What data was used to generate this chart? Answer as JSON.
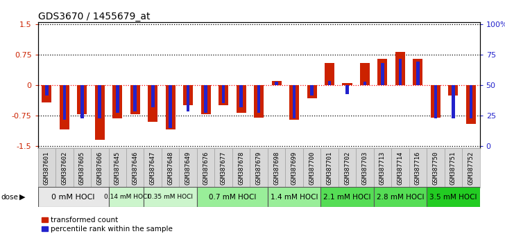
{
  "title": "GDS3670 / 1455679_at",
  "samples": [
    "GSM387601",
    "GSM387602",
    "GSM387605",
    "GSM387606",
    "GSM387645",
    "GSM387646",
    "GSM387647",
    "GSM387648",
    "GSM387649",
    "GSM387676",
    "GSM387677",
    "GSM387678",
    "GSM387679",
    "GSM387698",
    "GSM387699",
    "GSM387700",
    "GSM387701",
    "GSM387702",
    "GSM387703",
    "GSM387713",
    "GSM387714",
    "GSM387716",
    "GSM387750",
    "GSM387751",
    "GSM387752"
  ],
  "red_values": [
    -0.42,
    -1.08,
    -0.72,
    -1.35,
    -0.82,
    -0.71,
    -0.9,
    -1.08,
    -0.5,
    -0.72,
    -0.5,
    -0.68,
    -0.8,
    0.1,
    -0.85,
    -0.33,
    0.55,
    0.05,
    0.55,
    0.65,
    0.82,
    0.65,
    -0.8,
    -0.25,
    -0.95
  ],
  "blue_values": [
    -0.26,
    -0.85,
    -0.82,
    -0.82,
    -0.68,
    -0.65,
    -0.55,
    -1.05,
    -0.65,
    -0.68,
    -0.45,
    -0.55,
    -0.68,
    0.08,
    -0.82,
    -0.26,
    0.1,
    -0.22,
    0.08,
    0.55,
    0.65,
    0.58,
    -0.82,
    -0.82,
    -0.82
  ],
  "dose_groups": [
    {
      "label": "0 mM HOCl",
      "start": 0,
      "end": 4,
      "color": "#e8e8e8",
      "fontsize": 8
    },
    {
      "label": "0.14 mM HOCl",
      "start": 4,
      "end": 6,
      "color": "#ccf5cc",
      "fontsize": 6.5
    },
    {
      "label": "0.35 mM HOCl",
      "start": 6,
      "end": 9,
      "color": "#ccf5cc",
      "fontsize": 6.5
    },
    {
      "label": "0.7 mM HOCl",
      "start": 9,
      "end": 13,
      "color": "#99ee99",
      "fontsize": 7.5
    },
    {
      "label": "1.4 mM HOCl",
      "start": 13,
      "end": 16,
      "color": "#99ee99",
      "fontsize": 7.5
    },
    {
      "label": "2.1 mM HOCl",
      "start": 16,
      "end": 19,
      "color": "#55dd55",
      "fontsize": 7.5
    },
    {
      "label": "2.8 mM HOCl",
      "start": 19,
      "end": 22,
      "color": "#55dd55",
      "fontsize": 7.5
    },
    {
      "label": "3.5 mM HOCl",
      "start": 22,
      "end": 25,
      "color": "#22cc22",
      "fontsize": 7.5
    }
  ],
  "ylim": [
    -1.55,
    1.55
  ],
  "yticks_red": [
    -1.5,
    -0.75,
    0,
    0.75,
    1.5
  ],
  "yticks_blue_vals": [
    0,
    25,
    50,
    75,
    100
  ],
  "red_color": "#cc2200",
  "blue_color": "#2222cc",
  "bar_width": 0.55,
  "blue_bar_width": 0.18,
  "legend_red": "transformed count",
  "legend_blue": "percentile rank within the sample",
  "title_fontsize": 10,
  "tick_fontsize": 6.5
}
